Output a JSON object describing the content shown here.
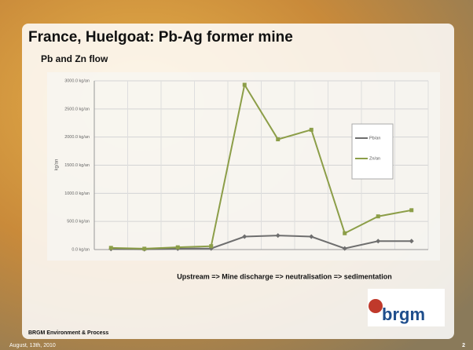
{
  "slide": {
    "title": "France, Huelgoat: Pb-Ag former mine",
    "subtitle": "Pb and Zn flow",
    "caption": "Upstream => Mine discharge => neutralisation => sedimentation",
    "footer": "BRGM Environment & Process",
    "date": "August, 13th, 2010",
    "page": "2",
    "logo": "brgm"
  },
  "chart_data": {
    "type": "line",
    "y_label": "kg/an",
    "categories": [
      null,
      null,
      null,
      null,
      null,
      null,
      null,
      null,
      null,
      null
    ],
    "series": [
      {
        "name": "Pb/an",
        "color": "#6e6e6e",
        "values": [
          10,
          5,
          15,
          20,
          230,
          250,
          230,
          20,
          150,
          150
        ]
      },
      {
        "name": "Zn/an",
        "color": "#8c9e48",
        "values": [
          30,
          15,
          40,
          60,
          2930,
          1960,
          2130,
          290,
          590,
          700
        ]
      }
    ],
    "ylim": [
      0,
      3000
    ],
    "yticks": [
      {
        "value": 0,
        "label": "0.0 kg/an"
      },
      {
        "value": 500,
        "label": "500.0 kg/an"
      },
      {
        "value": 1000,
        "label": "1000.0 kg/an"
      },
      {
        "value": 1500,
        "label": "1500.0 kg/an"
      },
      {
        "value": 2000,
        "label": "2000.0 kg/an"
      },
      {
        "value": 2500,
        "label": "2500.0 kg/an"
      },
      {
        "value": 3000,
        "label": "3000.0 kg/an"
      }
    ],
    "grid": true
  }
}
